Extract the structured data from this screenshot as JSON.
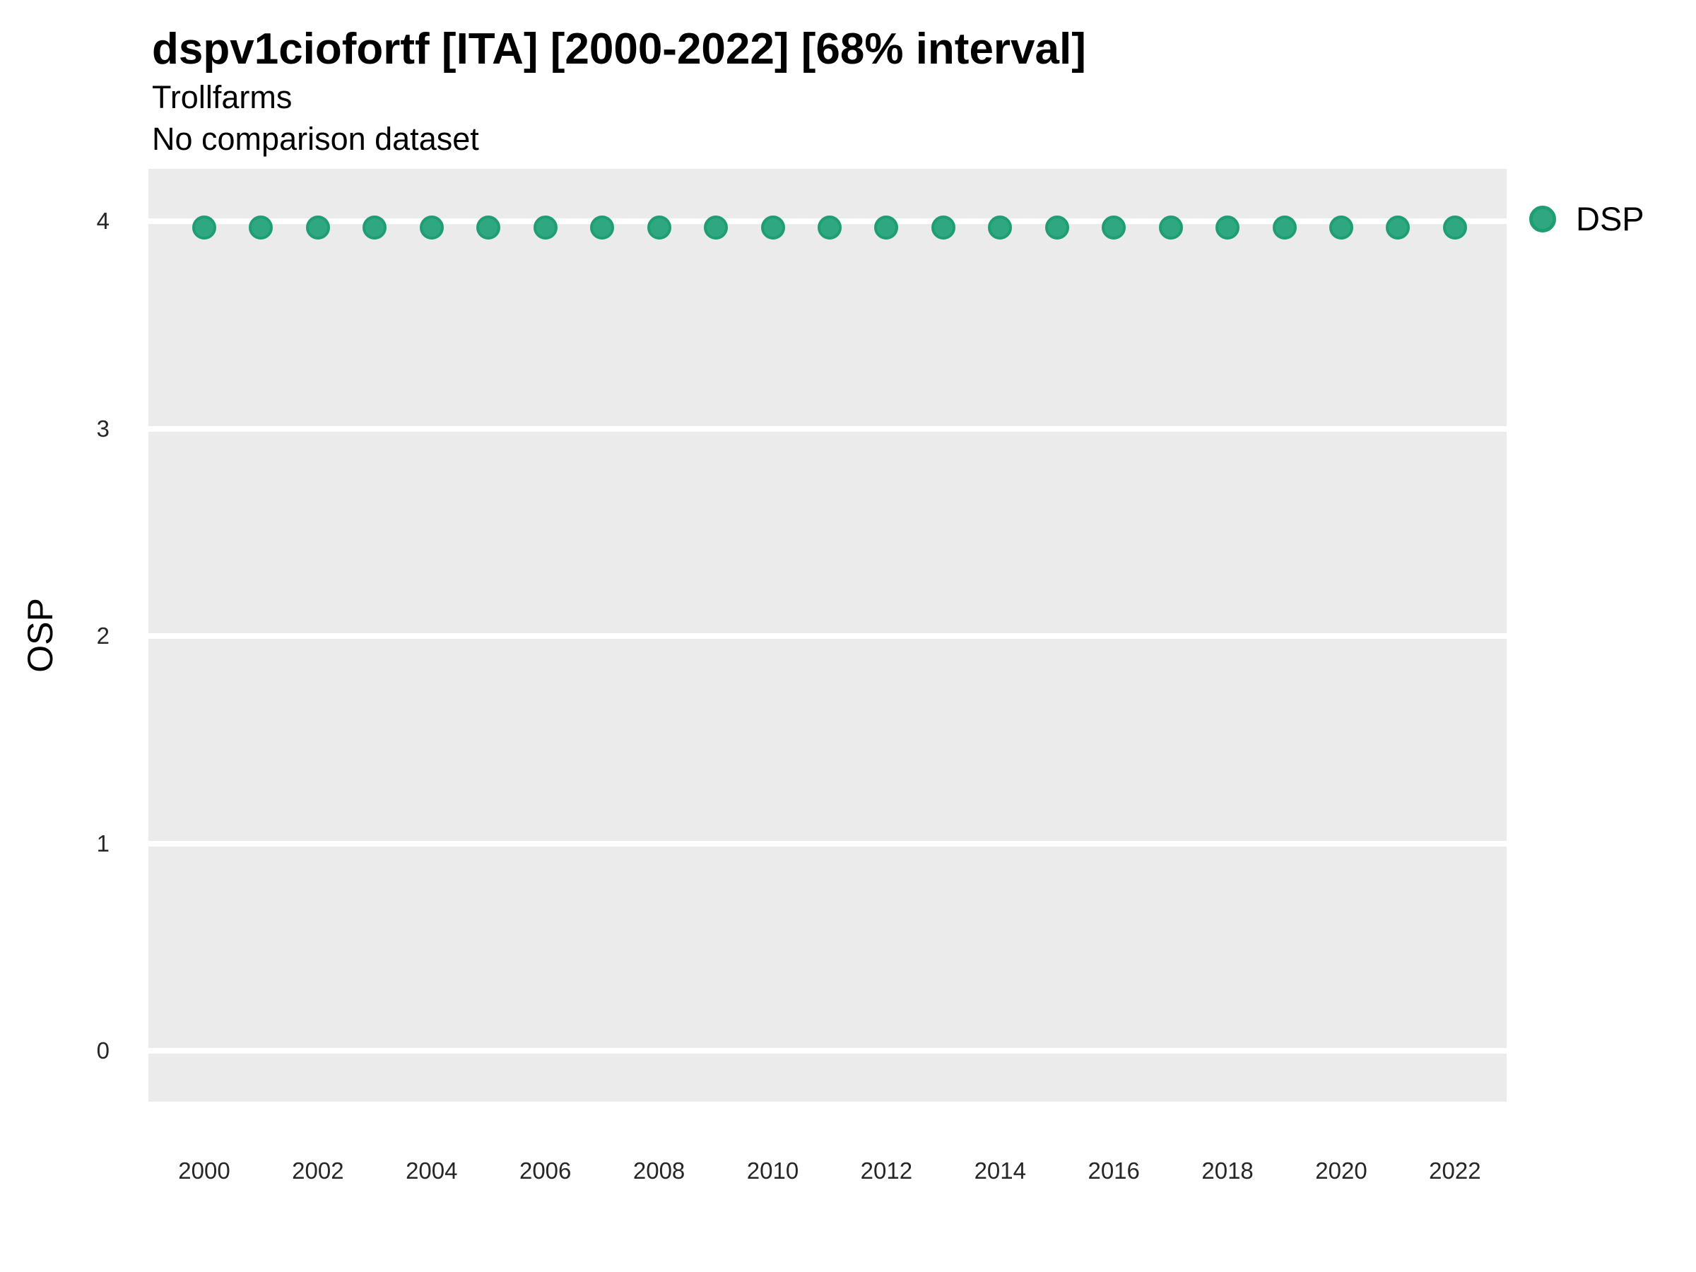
{
  "header": {
    "title": "dspv1ciofortf [ITA] [2000-2022] [68% interval]",
    "subtitle": "Trollfarms",
    "comparison_note": "No comparison dataset"
  },
  "legend": {
    "position": "right-top",
    "items": [
      {
        "label": "DSP",
        "swatch": "circle",
        "color": "#2FA881",
        "border_color": "#1E9E72"
      }
    ]
  },
  "chart_data": {
    "type": "scatter",
    "title": "dspv1ciofortf [ITA] [2000-2022] [68% interval]",
    "subtitle": "Trollfarms",
    "note": "No comparison dataset",
    "xlabel": "",
    "ylabel": "OSP",
    "x": [
      2000,
      2001,
      2002,
      2003,
      2004,
      2005,
      2006,
      2007,
      2008,
      2009,
      2010,
      2011,
      2012,
      2013,
      2014,
      2015,
      2016,
      2017,
      2018,
      2019,
      2020,
      2021,
      2022
    ],
    "series": [
      {
        "name": "DSP",
        "values": [
          3.97,
          3.97,
          3.97,
          3.97,
          3.97,
          3.97,
          3.97,
          3.97,
          3.97,
          3.97,
          3.97,
          3.97,
          3.97,
          3.97,
          3.97,
          3.97,
          3.97,
          3.97,
          3.97,
          3.97,
          3.97,
          3.97,
          3.97
        ]
      }
    ],
    "ylim": [
      -0.26,
      4.26
    ],
    "yticks": [
      0,
      1,
      2,
      3,
      4
    ],
    "xticks": [
      2000,
      2002,
      2004,
      2006,
      2008,
      2010,
      2012,
      2014,
      2016,
      2018,
      2020,
      2022
    ],
    "grid": "horizontal-major-only",
    "panel_background": "#EBEBEB",
    "gridline_color": "#FFFFFF",
    "point_fill": "#2FA881",
    "point_border": "#1E9E72",
    "legend_position": "right"
  }
}
